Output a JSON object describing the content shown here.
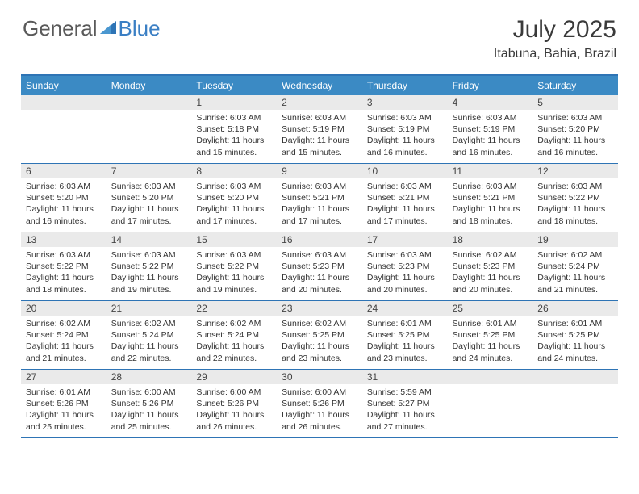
{
  "brand": {
    "text1": "General",
    "text2": "Blue"
  },
  "title": "July 2025",
  "location": "Itabuna, Bahia, Brazil",
  "colors": {
    "header_blue": "#3b8ac4",
    "border_blue": "#2e74b5",
    "daynum_bg": "#eaeaea",
    "text_dark": "#3a3a3a",
    "logo_gray": "#5a5a5a",
    "logo_blue": "#3b7fc4"
  },
  "dow": [
    "Sunday",
    "Monday",
    "Tuesday",
    "Wednesday",
    "Thursday",
    "Friday",
    "Saturday"
  ],
  "weeks": [
    [
      {
        "n": "",
        "sunrise": "",
        "sunset": "",
        "day": ""
      },
      {
        "n": "",
        "sunrise": "",
        "sunset": "",
        "day": ""
      },
      {
        "n": "1",
        "sunrise": "Sunrise: 6:03 AM",
        "sunset": "Sunset: 5:18 PM",
        "day": "Daylight: 11 hours and 15 minutes."
      },
      {
        "n": "2",
        "sunrise": "Sunrise: 6:03 AM",
        "sunset": "Sunset: 5:19 PM",
        "day": "Daylight: 11 hours and 15 minutes."
      },
      {
        "n": "3",
        "sunrise": "Sunrise: 6:03 AM",
        "sunset": "Sunset: 5:19 PM",
        "day": "Daylight: 11 hours and 16 minutes."
      },
      {
        "n": "4",
        "sunrise": "Sunrise: 6:03 AM",
        "sunset": "Sunset: 5:19 PM",
        "day": "Daylight: 11 hours and 16 minutes."
      },
      {
        "n": "5",
        "sunrise": "Sunrise: 6:03 AM",
        "sunset": "Sunset: 5:20 PM",
        "day": "Daylight: 11 hours and 16 minutes."
      }
    ],
    [
      {
        "n": "6",
        "sunrise": "Sunrise: 6:03 AM",
        "sunset": "Sunset: 5:20 PM",
        "day": "Daylight: 11 hours and 16 minutes."
      },
      {
        "n": "7",
        "sunrise": "Sunrise: 6:03 AM",
        "sunset": "Sunset: 5:20 PM",
        "day": "Daylight: 11 hours and 17 minutes."
      },
      {
        "n": "8",
        "sunrise": "Sunrise: 6:03 AM",
        "sunset": "Sunset: 5:20 PM",
        "day": "Daylight: 11 hours and 17 minutes."
      },
      {
        "n": "9",
        "sunrise": "Sunrise: 6:03 AM",
        "sunset": "Sunset: 5:21 PM",
        "day": "Daylight: 11 hours and 17 minutes."
      },
      {
        "n": "10",
        "sunrise": "Sunrise: 6:03 AM",
        "sunset": "Sunset: 5:21 PM",
        "day": "Daylight: 11 hours and 17 minutes."
      },
      {
        "n": "11",
        "sunrise": "Sunrise: 6:03 AM",
        "sunset": "Sunset: 5:21 PM",
        "day": "Daylight: 11 hours and 18 minutes."
      },
      {
        "n": "12",
        "sunrise": "Sunrise: 6:03 AM",
        "sunset": "Sunset: 5:22 PM",
        "day": "Daylight: 11 hours and 18 minutes."
      }
    ],
    [
      {
        "n": "13",
        "sunrise": "Sunrise: 6:03 AM",
        "sunset": "Sunset: 5:22 PM",
        "day": "Daylight: 11 hours and 18 minutes."
      },
      {
        "n": "14",
        "sunrise": "Sunrise: 6:03 AM",
        "sunset": "Sunset: 5:22 PM",
        "day": "Daylight: 11 hours and 19 minutes."
      },
      {
        "n": "15",
        "sunrise": "Sunrise: 6:03 AM",
        "sunset": "Sunset: 5:22 PM",
        "day": "Daylight: 11 hours and 19 minutes."
      },
      {
        "n": "16",
        "sunrise": "Sunrise: 6:03 AM",
        "sunset": "Sunset: 5:23 PM",
        "day": "Daylight: 11 hours and 20 minutes."
      },
      {
        "n": "17",
        "sunrise": "Sunrise: 6:03 AM",
        "sunset": "Sunset: 5:23 PM",
        "day": "Daylight: 11 hours and 20 minutes."
      },
      {
        "n": "18",
        "sunrise": "Sunrise: 6:02 AM",
        "sunset": "Sunset: 5:23 PM",
        "day": "Daylight: 11 hours and 20 minutes."
      },
      {
        "n": "19",
        "sunrise": "Sunrise: 6:02 AM",
        "sunset": "Sunset: 5:24 PM",
        "day": "Daylight: 11 hours and 21 minutes."
      }
    ],
    [
      {
        "n": "20",
        "sunrise": "Sunrise: 6:02 AM",
        "sunset": "Sunset: 5:24 PM",
        "day": "Daylight: 11 hours and 21 minutes."
      },
      {
        "n": "21",
        "sunrise": "Sunrise: 6:02 AM",
        "sunset": "Sunset: 5:24 PM",
        "day": "Daylight: 11 hours and 22 minutes."
      },
      {
        "n": "22",
        "sunrise": "Sunrise: 6:02 AM",
        "sunset": "Sunset: 5:24 PM",
        "day": "Daylight: 11 hours and 22 minutes."
      },
      {
        "n": "23",
        "sunrise": "Sunrise: 6:02 AM",
        "sunset": "Sunset: 5:25 PM",
        "day": "Daylight: 11 hours and 23 minutes."
      },
      {
        "n": "24",
        "sunrise": "Sunrise: 6:01 AM",
        "sunset": "Sunset: 5:25 PM",
        "day": "Daylight: 11 hours and 23 minutes."
      },
      {
        "n": "25",
        "sunrise": "Sunrise: 6:01 AM",
        "sunset": "Sunset: 5:25 PM",
        "day": "Daylight: 11 hours and 24 minutes."
      },
      {
        "n": "26",
        "sunrise": "Sunrise: 6:01 AM",
        "sunset": "Sunset: 5:25 PM",
        "day": "Daylight: 11 hours and 24 minutes."
      }
    ],
    [
      {
        "n": "27",
        "sunrise": "Sunrise: 6:01 AM",
        "sunset": "Sunset: 5:26 PM",
        "day": "Daylight: 11 hours and 25 minutes."
      },
      {
        "n": "28",
        "sunrise": "Sunrise: 6:00 AM",
        "sunset": "Sunset: 5:26 PM",
        "day": "Daylight: 11 hours and 25 minutes."
      },
      {
        "n": "29",
        "sunrise": "Sunrise: 6:00 AM",
        "sunset": "Sunset: 5:26 PM",
        "day": "Daylight: 11 hours and 26 minutes."
      },
      {
        "n": "30",
        "sunrise": "Sunrise: 6:00 AM",
        "sunset": "Sunset: 5:26 PM",
        "day": "Daylight: 11 hours and 26 minutes."
      },
      {
        "n": "31",
        "sunrise": "Sunrise: 5:59 AM",
        "sunset": "Sunset: 5:27 PM",
        "day": "Daylight: 11 hours and 27 minutes."
      },
      {
        "n": "",
        "sunrise": "",
        "sunset": "",
        "day": ""
      },
      {
        "n": "",
        "sunrise": "",
        "sunset": "",
        "day": ""
      }
    ]
  ]
}
